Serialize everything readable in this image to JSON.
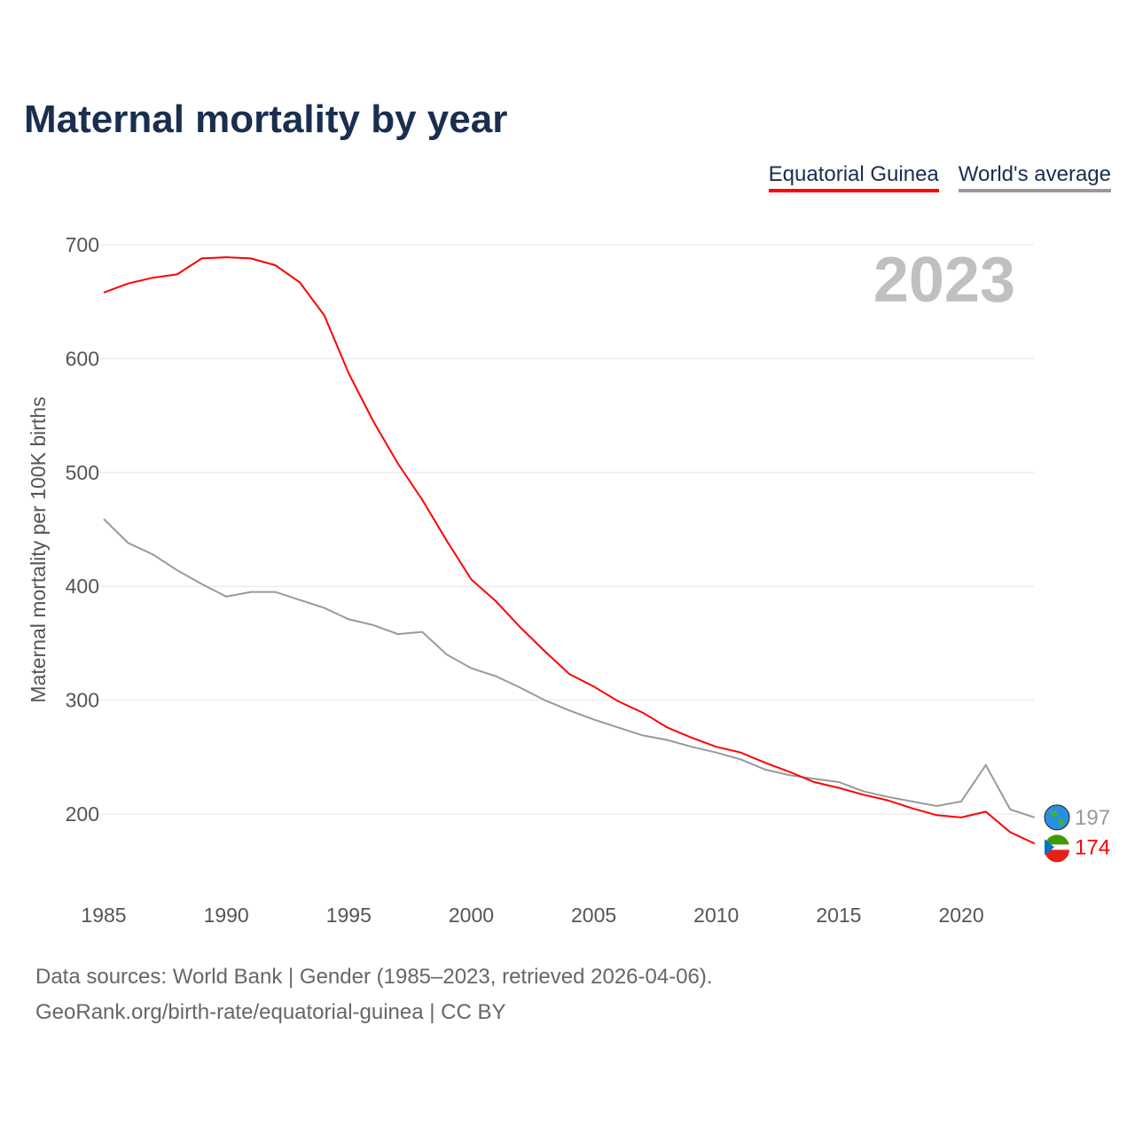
{
  "title": "Maternal mortality by year",
  "legend": [
    "Equatorial Guinea",
    "World's average"
  ],
  "year_label": "2023",
  "footer": {
    "line1": "Data sources: World Bank | Gender (1985–2023, retrieved 2026-04-06).",
    "line2": "GeoRank.org/birth-rate/equatorial-guinea | CC BY"
  },
  "colors": {
    "country": "#ff0000",
    "world": "#999999",
    "title": "#1a2e4f"
  },
  "chart_data": {
    "type": "line",
    "title": "Maternal mortality by year",
    "xlabel": "",
    "ylabel": "Maternal mortality per 100K births",
    "xlim": [
      1985,
      2023
    ],
    "ylim": [
      150,
      700
    ],
    "yticks": [
      200,
      300,
      400,
      500,
      600,
      700
    ],
    "xticks": [
      1985,
      1990,
      1995,
      2000,
      2005,
      2010,
      2015,
      2020
    ],
    "grid": true,
    "legend_position": "top-right",
    "x": [
      1985,
      1986,
      1987,
      1988,
      1989,
      1990,
      1991,
      1992,
      1993,
      1994,
      1995,
      1996,
      1997,
      1998,
      1999,
      2000,
      2001,
      2002,
      2003,
      2004,
      2005,
      2006,
      2007,
      2008,
      2009,
      2010,
      2011,
      2012,
      2013,
      2014,
      2015,
      2016,
      2017,
      2018,
      2019,
      2020,
      2021,
      2022,
      2023
    ],
    "series": [
      {
        "name": "Equatorial Guinea",
        "end_label": "174",
        "values": [
          658,
          666,
          671,
          674,
          688,
          689,
          688,
          682,
          667,
          638,
          587,
          545,
          508,
          476,
          440,
          406,
          387,
          364,
          343,
          323,
          312,
          299,
          289,
          276,
          267,
          259,
          254,
          245,
          237,
          228,
          223,
          217,
          212,
          205,
          199,
          197,
          202,
          184,
          174
        ]
      },
      {
        "name": "World's average",
        "end_label": "197",
        "values": [
          459,
          438,
          428,
          414,
          402,
          391,
          395,
          395,
          388,
          381,
          371,
          366,
          358,
          360,
          340,
          328,
          321,
          311,
          300,
          291,
          283,
          276,
          269,
          265,
          259,
          254,
          248,
          239,
          234,
          231,
          228,
          220,
          215,
          211,
          207,
          211,
          243,
          204,
          197
        ]
      }
    ]
  }
}
